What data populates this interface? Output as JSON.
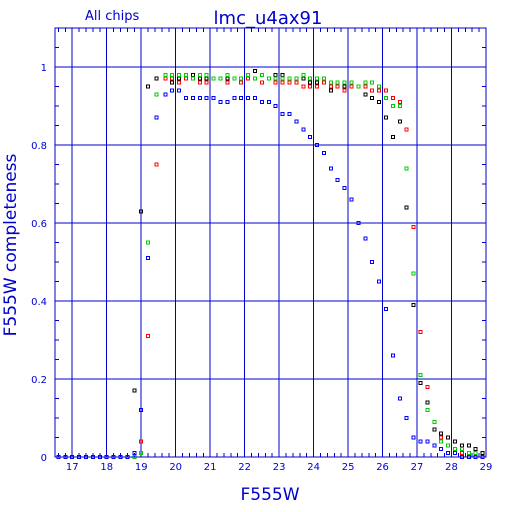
{
  "chart_data": {
    "type": "scatter",
    "title": "lmc_u4ax91",
    "subtitle": "All chips",
    "xlabel": "F555W",
    "ylabel": "F555W completeness",
    "xlim": [
      16.5,
      29
    ],
    "ylim": [
      0,
      1.1
    ],
    "grid": true,
    "xticks": [
      "17",
      "18",
      "19",
      "20",
      "21",
      "22",
      "23",
      "24",
      "25",
      "26",
      "27",
      "28",
      "29"
    ],
    "yticks": [
      "0",
      "0.2",
      "0.4",
      "0.6",
      "0.8",
      "1"
    ],
    "series": [
      {
        "color": "#000000",
        "points": [
          [
            16.6,
            0
          ],
          [
            16.8,
            0
          ],
          [
            17.0,
            0
          ],
          [
            17.2,
            0
          ],
          [
            17.4,
            0
          ],
          [
            17.6,
            0
          ],
          [
            17.8,
            0
          ],
          [
            18.0,
            0
          ],
          [
            18.2,
            0
          ],
          [
            18.4,
            0
          ],
          [
            18.6,
            0
          ],
          [
            18.8,
            0.17
          ],
          [
            19.0,
            0.63
          ],
          [
            19.2,
            0.95
          ],
          [
            19.45,
            0.97
          ],
          [
            19.7,
            0.97
          ],
          [
            19.9,
            0.96
          ],
          [
            20.1,
            0.97
          ],
          [
            20.3,
            0.98
          ],
          [
            20.5,
            0.98
          ],
          [
            20.7,
            0.97
          ],
          [
            20.9,
            0.97
          ],
          [
            21.1,
            0.97
          ],
          [
            21.3,
            0.97
          ],
          [
            21.5,
            0.97
          ],
          [
            21.7,
            0.97
          ],
          [
            21.9,
            0.97
          ],
          [
            22.1,
            0.98
          ],
          [
            22.3,
            0.99
          ],
          [
            22.5,
            0.98
          ],
          [
            22.7,
            0.97
          ],
          [
            22.9,
            0.98
          ],
          [
            23.1,
            0.98
          ],
          [
            23.3,
            0.97
          ],
          [
            23.5,
            0.97
          ],
          [
            23.7,
            0.97
          ],
          [
            23.9,
            0.96
          ],
          [
            24.1,
            0.96
          ],
          [
            24.3,
            0.96
          ],
          [
            24.5,
            0.94
          ],
          [
            24.7,
            0.96
          ],
          [
            24.9,
            0.95
          ],
          [
            25.1,
            0.95
          ],
          [
            25.3,
            0.95
          ],
          [
            25.5,
            0.93
          ],
          [
            25.7,
            0.92
          ],
          [
            25.9,
            0.91
          ],
          [
            26.1,
            0.87
          ],
          [
            26.3,
            0.82
          ],
          [
            26.5,
            0.86
          ],
          [
            26.7,
            0.64
          ],
          [
            26.9,
            0.39
          ],
          [
            27.1,
            0.19
          ],
          [
            27.3,
            0.14
          ],
          [
            27.5,
            0.07
          ],
          [
            27.7,
            0.06
          ],
          [
            27.9,
            0.05
          ],
          [
            28.1,
            0.04
          ],
          [
            28.3,
            0.03
          ],
          [
            28.5,
            0.03
          ],
          [
            28.7,
            0.02
          ],
          [
            28.9,
            0.01
          ]
        ]
      },
      {
        "color": "#ff0000",
        "points": [
          [
            16.6,
            0
          ],
          [
            16.8,
            0
          ],
          [
            17.0,
            0
          ],
          [
            17.2,
            0
          ],
          [
            17.4,
            0
          ],
          [
            17.6,
            0
          ],
          [
            17.8,
            0
          ],
          [
            18.0,
            0
          ],
          [
            18.2,
            0
          ],
          [
            18.4,
            0
          ],
          [
            18.6,
            0
          ],
          [
            18.8,
            0
          ],
          [
            19.0,
            0.04
          ],
          [
            19.2,
            0.31
          ],
          [
            19.45,
            0.75
          ],
          [
            19.7,
            0.97
          ],
          [
            19.9,
            0.97
          ],
          [
            20.1,
            0.96
          ],
          [
            20.3,
            0.97
          ],
          [
            20.5,
            0.97
          ],
          [
            20.7,
            0.96
          ],
          [
            20.9,
            0.96
          ],
          [
            21.1,
            0.97
          ],
          [
            21.3,
            0.97
          ],
          [
            21.5,
            0.96
          ],
          [
            21.7,
            0.97
          ],
          [
            21.9,
            0.96
          ],
          [
            22.1,
            0.97
          ],
          [
            22.3,
            0.97
          ],
          [
            22.5,
            0.96
          ],
          [
            22.7,
            0.97
          ],
          [
            22.9,
            0.96
          ],
          [
            23.1,
            0.96
          ],
          [
            23.3,
            0.96
          ],
          [
            23.5,
            0.96
          ],
          [
            23.7,
            0.95
          ],
          [
            23.9,
            0.95
          ],
          [
            24.1,
            0.95
          ],
          [
            24.3,
            0.96
          ],
          [
            24.5,
            0.95
          ],
          [
            24.7,
            0.95
          ],
          [
            24.9,
            0.94
          ],
          [
            25.1,
            0.95
          ],
          [
            25.3,
            0.95
          ],
          [
            25.5,
            0.95
          ],
          [
            25.7,
            0.94
          ],
          [
            25.9,
            0.94
          ],
          [
            26.1,
            0.94
          ],
          [
            26.3,
            0.92
          ],
          [
            26.5,
            0.91
          ],
          [
            26.7,
            0.84
          ],
          [
            26.9,
            0.59
          ],
          [
            27.1,
            0.32
          ],
          [
            27.3,
            0.18
          ],
          [
            27.5,
            0.09
          ],
          [
            27.7,
            0.05
          ],
          [
            27.9,
            0.03
          ],
          [
            28.1,
            0.02
          ],
          [
            28.3,
            0.01
          ],
          [
            28.5,
            0.01
          ],
          [
            28.7,
            0.01
          ],
          [
            28.9,
            0
          ]
        ]
      },
      {
        "color": "#00cc00",
        "points": [
          [
            16.6,
            0
          ],
          [
            16.8,
            0
          ],
          [
            17.0,
            0
          ],
          [
            17.2,
            0
          ],
          [
            17.4,
            0
          ],
          [
            17.6,
            0
          ],
          [
            17.8,
            0
          ],
          [
            18.0,
            0
          ],
          [
            18.2,
            0
          ],
          [
            18.4,
            0
          ],
          [
            18.6,
            0
          ],
          [
            18.8,
            0
          ],
          [
            19.0,
            0.01
          ],
          [
            19.2,
            0.55
          ],
          [
            19.45,
            0.93
          ],
          [
            19.7,
            0.98
          ],
          [
            19.9,
            0.98
          ],
          [
            20.1,
            0.98
          ],
          [
            20.3,
            0.98
          ],
          [
            20.5,
            0.97
          ],
          [
            20.7,
            0.98
          ],
          [
            20.9,
            0.98
          ],
          [
            21.1,
            0.97
          ],
          [
            21.3,
            0.97
          ],
          [
            21.5,
            0.98
          ],
          [
            21.7,
            0.97
          ],
          [
            21.9,
            0.97
          ],
          [
            22.1,
            0.98
          ],
          [
            22.3,
            0.97
          ],
          [
            22.5,
            0.98
          ],
          [
            22.7,
            0.97
          ],
          [
            22.9,
            0.97
          ],
          [
            23.1,
            0.97
          ],
          [
            23.3,
            0.97
          ],
          [
            23.5,
            0.97
          ],
          [
            23.7,
            0.98
          ],
          [
            23.9,
            0.97
          ],
          [
            24.1,
            0.97
          ],
          [
            24.3,
            0.97
          ],
          [
            24.5,
            0.96
          ],
          [
            24.7,
            0.96
          ],
          [
            24.9,
            0.96
          ],
          [
            25.1,
            0.96
          ],
          [
            25.3,
            0.95
          ],
          [
            25.5,
            0.96
          ],
          [
            25.7,
            0.96
          ],
          [
            25.9,
            0.95
          ],
          [
            26.1,
            0.92
          ],
          [
            26.3,
            0.9
          ],
          [
            26.5,
            0.9
          ],
          [
            26.7,
            0.74
          ],
          [
            26.9,
            0.47
          ],
          [
            27.1,
            0.21
          ],
          [
            27.3,
            0.12
          ],
          [
            27.5,
            0.09
          ],
          [
            27.7,
            0.04
          ],
          [
            27.9,
            0.03
          ],
          [
            28.1,
            0.02
          ],
          [
            28.3,
            0.02
          ],
          [
            28.5,
            0.01
          ],
          [
            28.7,
            0.01
          ],
          [
            28.9,
            0
          ]
        ]
      },
      {
        "color": "#0000ff",
        "points": [
          [
            16.6,
            0
          ],
          [
            16.8,
            0
          ],
          [
            17.0,
            0
          ],
          [
            17.2,
            0
          ],
          [
            17.4,
            0
          ],
          [
            17.6,
            0
          ],
          [
            17.8,
            0
          ],
          [
            18.0,
            0
          ],
          [
            18.2,
            0
          ],
          [
            18.4,
            0
          ],
          [
            18.6,
            0
          ],
          [
            18.8,
            0.01
          ],
          [
            19.0,
            0.12
          ],
          [
            19.2,
            0.51
          ],
          [
            19.45,
            0.87
          ],
          [
            19.7,
            0.93
          ],
          [
            19.9,
            0.94
          ],
          [
            20.1,
            0.94
          ],
          [
            20.3,
            0.92
          ],
          [
            20.5,
            0.92
          ],
          [
            20.7,
            0.92
          ],
          [
            20.9,
            0.92
          ],
          [
            21.1,
            0.92
          ],
          [
            21.3,
            0.91
          ],
          [
            21.5,
            0.91
          ],
          [
            21.7,
            0.92
          ],
          [
            21.9,
            0.92
          ],
          [
            22.1,
            0.92
          ],
          [
            22.3,
            0.92
          ],
          [
            22.5,
            0.91
          ],
          [
            22.7,
            0.91
          ],
          [
            22.9,
            0.9
          ],
          [
            23.1,
            0.88
          ],
          [
            23.3,
            0.88
          ],
          [
            23.5,
            0.86
          ],
          [
            23.7,
            0.84
          ],
          [
            23.9,
            0.82
          ],
          [
            24.1,
            0.8
          ],
          [
            24.3,
            0.78
          ],
          [
            24.5,
            0.74
          ],
          [
            24.7,
            0.71
          ],
          [
            24.9,
            0.69
          ],
          [
            25.1,
            0.66
          ],
          [
            25.3,
            0.6
          ],
          [
            25.5,
            0.56
          ],
          [
            25.7,
            0.5
          ],
          [
            25.9,
            0.45
          ],
          [
            26.1,
            0.38
          ],
          [
            26.3,
            0.26
          ],
          [
            26.5,
            0.15
          ],
          [
            26.7,
            0.1
          ],
          [
            26.9,
            0.05
          ],
          [
            27.1,
            0.04
          ],
          [
            27.3,
            0.04
          ],
          [
            27.5,
            0.03
          ],
          [
            27.7,
            0.02
          ],
          [
            27.9,
            0.01
          ],
          [
            28.1,
            0.01
          ],
          [
            28.3,
            0
          ],
          [
            28.5,
            0
          ],
          [
            28.7,
            0
          ],
          [
            28.9,
            0
          ]
        ]
      }
    ]
  }
}
